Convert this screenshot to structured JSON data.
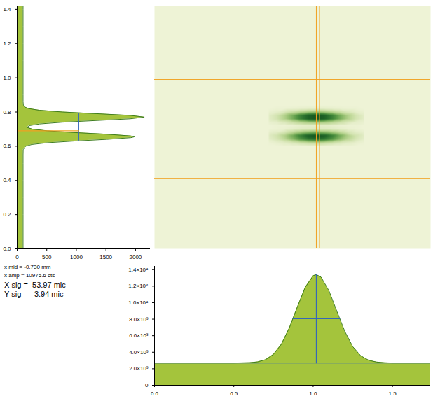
{
  "chart_data": [
    {
      "type": "area",
      "orientation": "horizontal",
      "color": "#a4c43c",
      "y": [
        0,
        0.1,
        0.2,
        0.3,
        0.4,
        0.5,
        0.55,
        0.58,
        0.6,
        0.61,
        0.62,
        0.63,
        0.64,
        0.65,
        0.655,
        0.66,
        0.67,
        0.68,
        0.69,
        0.7,
        0.71,
        0.72,
        0.73,
        0.74,
        0.75,
        0.76,
        0.77,
        0.78,
        0.79,
        0.8,
        0.81,
        0.82,
        0.83,
        0.84,
        0.86,
        0.9,
        1.0,
        1.1,
        1.2,
        1.3,
        1.4,
        1.42
      ],
      "values": [
        100,
        100,
        100,
        100,
        100,
        100,
        100,
        102,
        143,
        250,
        506,
        961,
        1519,
        1922,
        1980,
        1922,
        1519,
        961,
        507,
        255,
        166,
        200,
        379,
        766,
        1344,
        1909,
        2150,
        1909,
        1344,
        766,
        377,
        190,
        123,
        105,
        100,
        100,
        100,
        100,
        100,
        100,
        100,
        100
      ],
      "xlim": [
        0,
        2250
      ],
      "xticks": [
        0,
        500,
        1000,
        1500,
        2000
      ],
      "ylim": [
        0,
        1.42
      ],
      "yticks": [
        {
          "value": 0,
          "label": "0.0"
        },
        0.2,
        0.4,
        0.6,
        0.8,
        {
          "value": 1,
          "label": "1.0"
        },
        1.2,
        1.4
      ],
      "fit_lines": [
        {
          "x": [
            1040,
            1040
          ],
          "y": [
            0.635,
            0.79
          ],
          "color": "#3567b7"
        },
        {
          "x": [
            0,
            1040
          ],
          "y": [
            0.69,
            0.69
          ],
          "color": "#f0a020"
        }
      ]
    },
    {
      "type": "heatmap",
      "tick_labels": false,
      "xlim": [
        0,
        1.74
      ],
      "ylim": [
        0,
        1.42
      ],
      "zlim": [
        0,
        100
      ],
      "x": [
        0.72,
        0.77,
        0.82,
        0.87,
        0.92,
        0.97,
        1.02,
        1.07,
        1.12,
        1.17,
        1.22,
        1.27,
        1.32
      ],
      "y": [
        0.6,
        0.62,
        0.64,
        0.66,
        0.68,
        0.7,
        0.72,
        0.74,
        0.76,
        0.78,
        0.8,
        0.82,
        0.84
      ],
      "values": [
        [
          0,
          0,
          1,
          1,
          1,
          2,
          2,
          2,
          1,
          1,
          1,
          0,
          0
        ],
        [
          1,
          3,
          6,
          10,
          15,
          19,
          21,
          19,
          15,
          10,
          6,
          3,
          1
        ],
        [
          4,
          10,
          20,
          35,
          53,
          66,
          72,
          66,
          53,
          35,
          20,
          10,
          4
        ],
        [
          6,
          13,
          26,
          45,
          67,
          85,
          92,
          85,
          67,
          45,
          26,
          13,
          6
        ],
        [
          3,
          6,
          12,
          22,
          32,
          40,
          44,
          40,
          32,
          22,
          12,
          6,
          3
        ],
        [
          0,
          1,
          2,
          4,
          6,
          7,
          8,
          7,
          6,
          4,
          2,
          1,
          0
        ],
        [
          0,
          1,
          1,
          2,
          4,
          5,
          5,
          5,
          4,
          2,
          1,
          1,
          0
        ],
        [
          2,
          4,
          9,
          16,
          23,
          29,
          32,
          29,
          23,
          16,
          9,
          4,
          2
        ],
        [
          5,
          12,
          25,
          43,
          64,
          81,
          88,
          81,
          64,
          43,
          25,
          12,
          5
        ],
        [
          5,
          12,
          25,
          43,
          64,
          81,
          88,
          81,
          64,
          43,
          25,
          12,
          5
        ],
        [
          2,
          4,
          9,
          16,
          23,
          29,
          32,
          29,
          23,
          16,
          9,
          4,
          2
        ],
        [
          0,
          1,
          1,
          2,
          3,
          4,
          4,
          4,
          3,
          2,
          1,
          1,
          0
        ],
        [
          0,
          0,
          0,
          0,
          0,
          0,
          0,
          0,
          0,
          0,
          0,
          0,
          0
        ]
      ],
      "crosshair": {
        "x": [
          1.02,
          1.04
        ],
        "y": [
          0.41,
          0.99
        ],
        "color": "#f0a020"
      }
    },
    {
      "type": "area",
      "color": "#a4c43c",
      "x": [
        0,
        0.1,
        0.2,
        0.3,
        0.4,
        0.5,
        0.6,
        0.65,
        0.7,
        0.75,
        0.8,
        0.85,
        0.9,
        0.95,
        1.0,
        1.02,
        1.05,
        1.1,
        1.15,
        1.2,
        1.25,
        1.3,
        1.35,
        1.4,
        1.45,
        1.5,
        1.6,
        1.7,
        1.74
      ],
      "values": [
        2700,
        2700,
        2700,
        2700,
        2700,
        2700,
        2740,
        2830,
        3100,
        3740,
        4970,
        6950,
        9450,
        11850,
        13260,
        13400,
        13090,
        11420,
        8930,
        6500,
        4670,
        3570,
        3030,
        2810,
        2730,
        2700,
        2700,
        2700,
        2700
      ],
      "xlim": [
        0,
        1.74
      ],
      "xticks": [
        {
          "value": 0,
          "label": "0.0"
        },
        0.5,
        {
          "value": 1,
          "label": "1.0"
        },
        1.5
      ],
      "ylim": [
        0,
        14400
      ],
      "yticks": [
        0,
        {
          "value": 2000,
          "label": "2.0×10³"
        },
        {
          "value": 4000,
          "label": "4.0×10³"
        },
        {
          "value": 6000,
          "label": "6.0×10³"
        },
        {
          "value": 8000,
          "label": "8.0×10³"
        },
        {
          "value": 10000,
          "label": "1.0×10⁴"
        },
        {
          "value": 12000,
          "label": "1.2×10⁴"
        },
        {
          "value": 14000,
          "label": "1.4×10⁴"
        }
      ],
      "fit_lines": [
        {
          "x": [
            1.02,
            1.02
          ],
          "y": [
            2700,
            13400
          ],
          "color": "#3567b7"
        },
        {
          "x": [
            0.873,
            1.167
          ],
          "y": [
            8050,
            8050
          ],
          "color": "#3567b7"
        },
        {
          "x": [
            0,
            1.74
          ],
          "y": [
            2700,
            2700
          ],
          "color": "#3567b7"
        }
      ],
      "annotations": [
        "x mid = -0.730 mm",
        "x amp = 10975.6 cts",
        "X sig =  53.97 mic",
        "Y sig =   3.94 mic"
      ]
    }
  ]
}
